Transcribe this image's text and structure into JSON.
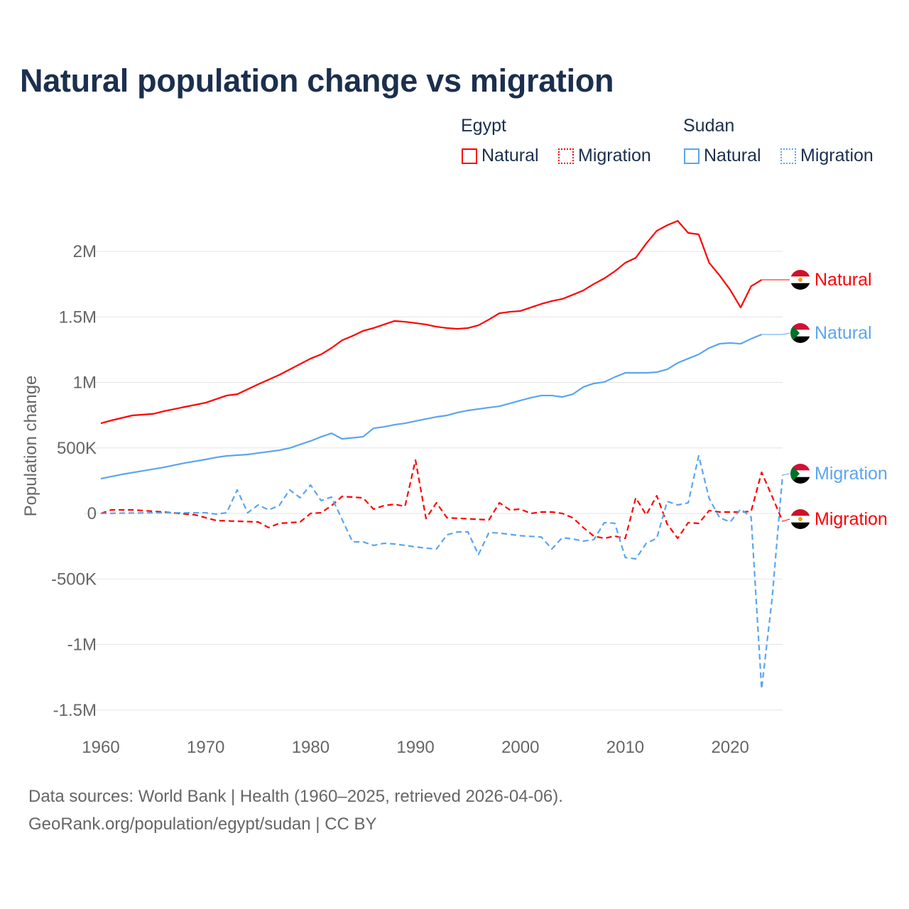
{
  "chart_data": {
    "type": "line",
    "title": "Natural population change vs migration",
    "xlabel": "",
    "ylabel": "Population change",
    "xlim": [
      1960,
      2025
    ],
    "ylim": [
      -1600000,
      2400000
    ],
    "x_ticks": [
      1960,
      1970,
      1980,
      1990,
      2000,
      2010,
      2020
    ],
    "x_tick_labels": [
      "1960",
      "1970",
      "1980",
      "1990",
      "2000",
      "2010",
      "2020"
    ],
    "y_ticks": [
      2000000,
      1500000,
      1000000,
      500000,
      0,
      -500000,
      -1000000,
      -1500000
    ],
    "y_tick_labels": [
      "2M",
      "1.5M",
      "1M",
      "500K",
      "0",
      "-500K",
      "-1M",
      "-1.5M"
    ],
    "grid": true,
    "legend_groups": [
      {
        "name": "Egypt",
        "items": [
          "Natural",
          "Migration"
        ]
      },
      {
        "name": "Sudan",
        "items": [
          "Natural",
          "Migration"
        ]
      }
    ],
    "series": [
      {
        "name": "Egypt Natural",
        "country": "Egypt",
        "label": "Natural",
        "color": "#ff0000",
        "dash": false,
        "x": [
          1960,
          1961,
          1963,
          1965,
          1966,
          1968,
          1970,
          1972,
          1973,
          1975,
          1977,
          1980,
          1981,
          1982,
          1983,
          1984,
          1985,
          1986,
          1987,
          1988,
          1989,
          1990,
          1991,
          1992,
          1993,
          1994,
          1995,
          1996,
          1997,
          1998,
          1999,
          2000,
          2001,
          2002,
          2003,
          2004,
          2005,
          2006,
          2007,
          2008,
          2009,
          2010,
          2011,
          2012,
          2013,
          2014,
          2015,
          2016,
          2017,
          2018,
          2019,
          2020,
          2021,
          2022,
          2023
        ],
        "y": [
          688000,
          710000,
          748000,
          760000,
          780000,
          813000,
          845000,
          900000,
          910000,
          986000,
          1057000,
          1182000,
          1214000,
          1263000,
          1322000,
          1355000,
          1393000,
          1415000,
          1442000,
          1469000,
          1463000,
          1453000,
          1442000,
          1425000,
          1415000,
          1409000,
          1415000,
          1436000,
          1480000,
          1528000,
          1539000,
          1545000,
          1572000,
          1599000,
          1621000,
          1637000,
          1669000,
          1702000,
          1751000,
          1794000,
          1848000,
          1913000,
          1951000,
          2060000,
          2157000,
          2200000,
          2233000,
          2141000,
          2130000,
          1913000,
          1816000,
          1707000,
          1572000,
          1734000,
          1783000
        ]
      },
      {
        "name": "Sudan Natural",
        "country": "Sudan",
        "label": "Natural",
        "color": "#5ba5ee",
        "dash": false,
        "x": [
          1960,
          1962,
          1964,
          1966,
          1968,
          1970,
          1971,
          1972,
          1974,
          1975,
          1977,
          1978,
          1980,
          1981,
          1982,
          1983,
          1985,
          1986,
          1987,
          1988,
          1989,
          1990,
          1991,
          1992,
          1993,
          1994,
          1995,
          1996,
          1997,
          1998,
          1999,
          2000,
          2001,
          2002,
          2003,
          2004,
          2005,
          2006,
          2007,
          2008,
          2009,
          2010,
          2011,
          2012,
          2013,
          2014,
          2015,
          2016,
          2017,
          2018,
          2019,
          2020,
          2021,
          2022,
          2023
        ],
        "y": [
          265000,
          298000,
          325000,
          352000,
          385000,
          412000,
          428000,
          439000,
          450000,
          461000,
          482000,
          499000,
          553000,
          585000,
          612000,
          569000,
          585000,
          650000,
          661000,
          677000,
          688000,
          705000,
          721000,
          737000,
          748000,
          770000,
          786000,
          797000,
          808000,
          818000,
          840000,
          862000,
          883000,
          900000,
          900000,
          889000,
          910000,
          965000,
          992000,
          1003000,
          1041000,
          1073000,
          1073000,
          1073000,
          1078000,
          1100000,
          1149000,
          1182000,
          1214000,
          1263000,
          1295000,
          1301000,
          1295000,
          1333000,
          1366000
        ]
      },
      {
        "name": "Egypt Migration",
        "country": "Egypt",
        "label": "Migration",
        "color": "#ff0000",
        "dash": true,
        "x": [
          1960,
          1961,
          1963,
          1966,
          1969,
          1971,
          1975,
          1976,
          1977,
          1979,
          1980,
          1981,
          1982,
          1983,
          1985,
          1986,
          1987,
          1988,
          1989,
          1990,
          1991,
          1992,
          1993,
          1997,
          1998,
          1999,
          2000,
          2001,
          2002,
          2003,
          2004,
          2005,
          2006,
          2007,
          2008,
          2009,
          2010,
          2011,
          2012,
          2013,
          2014,
          2015,
          2016,
          2017,
          2018,
          2019,
          2020,
          2021,
          2022,
          2023,
          2024,
          2025
        ],
        "y": [
          0,
          27000,
          27000,
          11000,
          -11000,
          -54000,
          -65000,
          -108000,
          -76000,
          -65000,
          0,
          5000,
          60000,
          130000,
          119000,
          33000,
          60000,
          70000,
          54000,
          407000,
          -38000,
          81000,
          -33000,
          -49000,
          81000,
          27000,
          33000,
          0,
          11000,
          11000,
          0,
          -33000,
          -108000,
          -173000,
          -190000,
          -173000,
          -190000,
          119000,
          -11000,
          135000,
          -81000,
          -190000,
          -70000,
          -76000,
          22000,
          11000,
          11000,
          11000,
          16000,
          314000,
          130000,
          -60000
        ]
      },
      {
        "name": "Sudan Migration",
        "country": "Sudan",
        "label": "Migration",
        "color": "#5ba5ee",
        "dash": true,
        "x": [
          1960,
          1965,
          1970,
          1971,
          1972,
          1973,
          1974,
          1975,
          1976,
          1977,
          1978,
          1979,
          1980,
          1981,
          1982,
          1984,
          1985,
          1986,
          1987,
          1988,
          1989,
          1990,
          1991,
          1992,
          1993,
          1994,
          1995,
          1996,
          1997,
          1998,
          1999,
          2000,
          2001,
          2002,
          2003,
          2004,
          2005,
          2006,
          2007,
          2008,
          2009,
          2010,
          2011,
          2012,
          2013,
          2014,
          2015,
          2016,
          2017,
          2018,
          2019,
          2020,
          2021,
          2022,
          2023,
          2024,
          2025
        ],
        "y": [
          0,
          5000,
          5000,
          -5000,
          5000,
          180000,
          5000,
          65000,
          27000,
          60000,
          180000,
          120000,
          217000,
          98000,
          125000,
          -217000,
          -217000,
          -244000,
          -228000,
          -233000,
          -244000,
          -255000,
          -265000,
          -271000,
          -163000,
          -141000,
          -141000,
          -314000,
          -146000,
          -150000,
          -160000,
          -170000,
          -175000,
          -180000,
          -271000,
          -184000,
          -195000,
          -211000,
          -200000,
          -70000,
          -75000,
          -336000,
          -347000,
          -228000,
          -190000,
          92000,
          65000,
          81000,
          440000,
          114000,
          -33000,
          -65000,
          33000,
          -27000,
          -1339000,
          -650000,
          293000
        ]
      }
    ],
    "end_labels": [
      {
        "series": "Egypt Natural",
        "text": "Natural",
        "value": 1783000
      },
      {
        "series": "Sudan Natural",
        "text": "Natural",
        "value": 1366000
      },
      {
        "series": "Sudan Migration",
        "text": "Migration",
        "value": 293000
      },
      {
        "series": "Egypt Migration",
        "text": "Migration",
        "value": -60000
      }
    ]
  },
  "legend": {
    "egypt": {
      "title": "Egypt",
      "natural": "Natural",
      "migration": "Migration"
    },
    "sudan": {
      "title": "Sudan",
      "natural": "Natural",
      "migration": "Migration"
    }
  },
  "footer": {
    "sources": "Data sources: World Bank | Health (1960–2025, retrieved 2026-04-06).",
    "link": "GeoRank.org/population/egypt/sudan | CC BY"
  }
}
